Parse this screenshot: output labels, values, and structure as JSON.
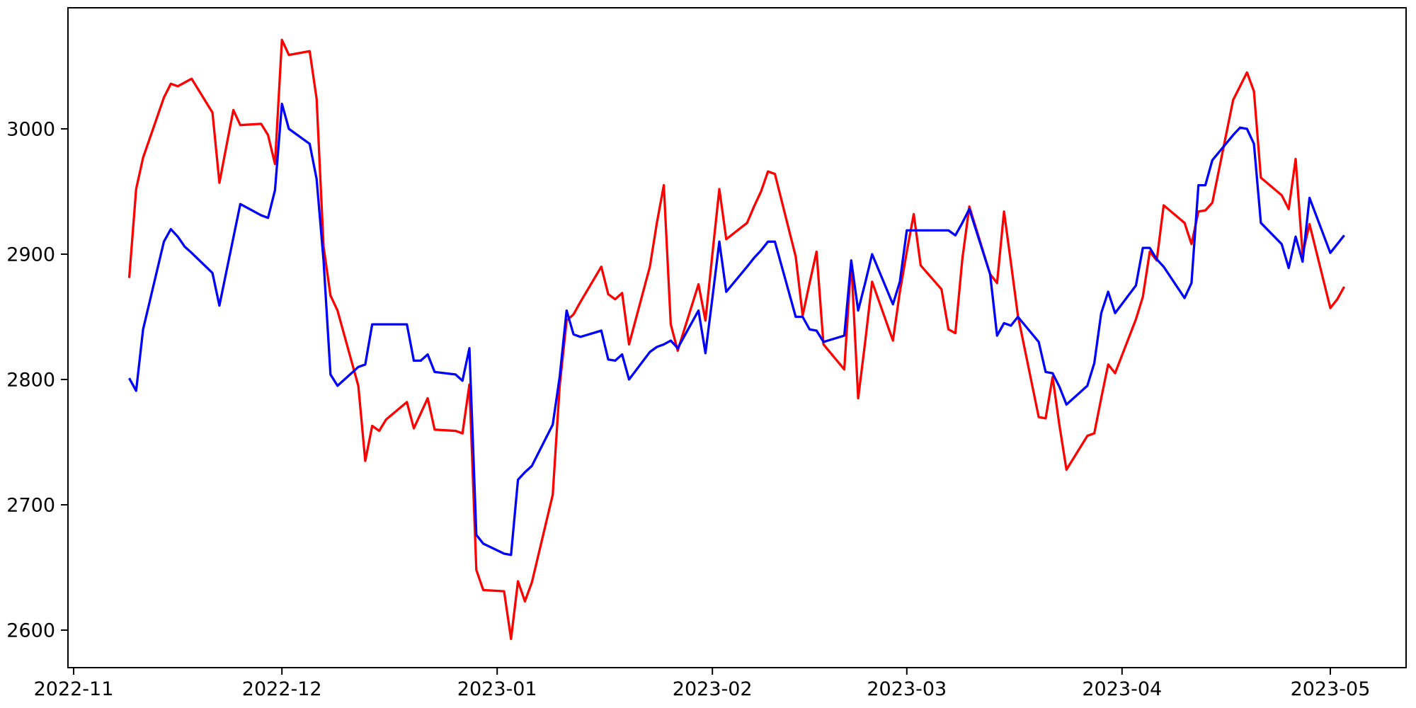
{
  "figure": {
    "background": "#ffffff",
    "plot_background": "#ffffff",
    "spine_color": "#000000"
  },
  "chart_data": {
    "type": "line",
    "title": "",
    "xlabel": "",
    "ylabel": "",
    "grid": false,
    "legend": "none",
    "x_axis": {
      "kind": "date",
      "range_start": "2022-10-31",
      "range_end": "2023-05-12",
      "ticks": [
        {
          "date": "2022-11-01",
          "label": "2022-11"
        },
        {
          "date": "2022-12-01",
          "label": "2022-12"
        },
        {
          "date": "2023-01-01",
          "label": "2023-01"
        },
        {
          "date": "2023-02-01",
          "label": "2023-02"
        },
        {
          "date": "2023-03-01",
          "label": "2023-03"
        },
        {
          "date": "2023-04-01",
          "label": "2023-04"
        },
        {
          "date": "2023-05-01",
          "label": "2023-05"
        }
      ]
    },
    "y_axis": {
      "range": [
        2570,
        3097
      ],
      "ticks": [
        {
          "value": 2600,
          "label": "2600"
        },
        {
          "value": 2700,
          "label": "2700"
        },
        {
          "value": 2800,
          "label": "2800"
        },
        {
          "value": 2900,
          "label": "2900"
        },
        {
          "value": 3000,
          "label": "3000"
        }
      ]
    },
    "series": [
      {
        "name": "red",
        "color": "#ff0000",
        "points": [
          [
            "2022-11-09",
            2881
          ],
          [
            "2022-11-10",
            2952
          ],
          [
            "2022-11-11",
            2977
          ],
          [
            "2022-11-14",
            3025
          ],
          [
            "2022-11-15",
            3036
          ],
          [
            "2022-11-16",
            3034
          ],
          [
            "2022-11-17",
            3037
          ],
          [
            "2022-11-18",
            3040
          ],
          [
            "2022-11-21",
            3013
          ],
          [
            "2022-11-22",
            2957
          ],
          [
            "2022-11-23",
            2986
          ],
          [
            "2022-11-24",
            3015
          ],
          [
            "2022-11-25",
            3003
          ],
          [
            "2022-11-28",
            3004
          ],
          [
            "2022-11-29",
            2995
          ],
          [
            "2022-11-30",
            2972
          ],
          [
            "2022-12-01",
            3071
          ],
          [
            "2022-12-02",
            3059
          ],
          [
            "2022-12-05",
            3062
          ],
          [
            "2022-12-06",
            3024
          ],
          [
            "2022-12-07",
            2906
          ],
          [
            "2022-12-08",
            2867
          ],
          [
            "2022-12-09",
            2855
          ],
          [
            "2022-12-12",
            2795
          ],
          [
            "2022-12-13",
            2735
          ],
          [
            "2022-12-14",
            2763
          ],
          [
            "2022-12-15",
            2759
          ],
          [
            "2022-12-16",
            2768
          ],
          [
            "2022-12-19",
            2782
          ],
          [
            "2022-12-20",
            2761
          ],
          [
            "2022-12-21",
            2773
          ],
          [
            "2022-12-22",
            2785
          ],
          [
            "2022-12-23",
            2760
          ],
          [
            "2022-12-26",
            2759
          ],
          [
            "2022-12-27",
            2757
          ],
          [
            "2022-12-28",
            2796
          ],
          [
            "2022-12-29",
            2648
          ],
          [
            "2022-12-30",
            2632
          ],
          [
            "2023-01-02",
            2631
          ],
          [
            "2023-01-03",
            2593
          ],
          [
            "2023-01-04",
            2639
          ],
          [
            "2023-01-05",
            2623
          ],
          [
            "2023-01-06",
            2638
          ],
          [
            "2023-01-09",
            2708
          ],
          [
            "2023-01-10",
            2795
          ],
          [
            "2023-01-11",
            2847
          ],
          [
            "2023-01-12",
            2852
          ],
          [
            "2023-01-13",
            2862
          ],
          [
            "2023-01-16",
            2890
          ],
          [
            "2023-01-17",
            2868
          ],
          [
            "2023-01-18",
            2864
          ],
          [
            "2023-01-19",
            2869
          ],
          [
            "2023-01-20",
            2828
          ],
          [
            "2023-01-23",
            2890
          ],
          [
            "2023-01-24",
            2925
          ],
          [
            "2023-01-25",
            2955
          ],
          [
            "2023-01-26",
            2844
          ],
          [
            "2023-01-27",
            2823
          ],
          [
            "2023-01-30",
            2876
          ],
          [
            "2023-01-31",
            2847
          ],
          [
            "2023-02-01",
            2900
          ],
          [
            "2023-02-02",
            2952
          ],
          [
            "2023-02-03",
            2912
          ],
          [
            "2023-02-06",
            2925
          ],
          [
            "2023-02-07",
            2938
          ],
          [
            "2023-02-08",
            2950
          ],
          [
            "2023-02-09",
            2966
          ],
          [
            "2023-02-10",
            2964
          ],
          [
            "2023-02-13",
            2898
          ],
          [
            "2023-02-14",
            2851
          ],
          [
            "2023-02-15",
            2877
          ],
          [
            "2023-02-16",
            2902
          ],
          [
            "2023-02-17",
            2828
          ],
          [
            "2023-02-20",
            2808
          ],
          [
            "2023-02-21",
            2895
          ],
          [
            "2023-02-22",
            2785
          ],
          [
            "2023-02-23",
            2830
          ],
          [
            "2023-02-24",
            2878
          ],
          [
            "2023-02-27",
            2831
          ],
          [
            "2023-02-28",
            2870
          ],
          [
            "2023-03-01",
            2902
          ],
          [
            "2023-03-02",
            2932
          ],
          [
            "2023-03-03",
            2891
          ],
          [
            "2023-03-06",
            2872
          ],
          [
            "2023-03-07",
            2840
          ],
          [
            "2023-03-08",
            2837
          ],
          [
            "2023-03-09",
            2896
          ],
          [
            "2023-03-10",
            2938
          ],
          [
            "2023-03-13",
            2884
          ],
          [
            "2023-03-14",
            2877
          ],
          [
            "2023-03-15",
            2934
          ],
          [
            "2023-03-16",
            2893
          ],
          [
            "2023-03-17",
            2851
          ],
          [
            "2023-03-20",
            2770
          ],
          [
            "2023-03-21",
            2769
          ],
          [
            "2023-03-22",
            2802
          ],
          [
            "2023-03-23",
            2763
          ],
          [
            "2023-03-24",
            2728
          ],
          [
            "2023-03-27",
            2755
          ],
          [
            "2023-03-28",
            2757
          ],
          [
            "2023-03-29",
            2785
          ],
          [
            "2023-03-30",
            2812
          ],
          [
            "2023-03-31",
            2805
          ],
          [
            "2023-04-03",
            2848
          ],
          [
            "2023-04-04",
            2866
          ],
          [
            "2023-04-05",
            2902
          ],
          [
            "2023-04-06",
            2895
          ],
          [
            "2023-04-07",
            2939
          ],
          [
            "2023-04-10",
            2925
          ],
          [
            "2023-04-11",
            2908
          ],
          [
            "2023-04-12",
            2934
          ],
          [
            "2023-04-13",
            2935
          ],
          [
            "2023-04-14",
            2941
          ],
          [
            "2023-04-17",
            3023
          ],
          [
            "2023-04-18",
            3034
          ],
          [
            "2023-04-19",
            3045
          ],
          [
            "2023-04-20",
            3030
          ],
          [
            "2023-04-21",
            2961
          ],
          [
            "2023-04-24",
            2947
          ],
          [
            "2023-04-25",
            2936
          ],
          [
            "2023-04-26",
            2976
          ],
          [
            "2023-04-27",
            2900
          ],
          [
            "2023-04-28",
            2924
          ],
          [
            "2023-05-01",
            2857
          ],
          [
            "2023-05-02",
            2864
          ],
          [
            "2023-05-03",
            2874
          ]
        ]
      },
      {
        "name": "blue",
        "color": "#0000ff",
        "points": [
          [
            "2022-11-09",
            2801
          ],
          [
            "2022-11-10",
            2791
          ],
          [
            "2022-11-11",
            2840
          ],
          [
            "2022-11-14",
            2910
          ],
          [
            "2022-11-15",
            2920
          ],
          [
            "2022-11-16",
            2914
          ],
          [
            "2022-11-17",
            2906
          ],
          [
            "2022-11-18",
            2901
          ],
          [
            "2022-11-21",
            2885
          ],
          [
            "2022-11-22",
            2859
          ],
          [
            "2022-11-23",
            2886
          ],
          [
            "2022-11-25",
            2940
          ],
          [
            "2022-11-28",
            2931
          ],
          [
            "2022-11-29",
            2929
          ],
          [
            "2022-11-30",
            2951
          ],
          [
            "2022-12-01",
            3020
          ],
          [
            "2022-12-02",
            3000
          ],
          [
            "2022-12-05",
            2988
          ],
          [
            "2022-12-06",
            2960
          ],
          [
            "2022-12-07",
            2895
          ],
          [
            "2022-12-08",
            2804
          ],
          [
            "2022-12-09",
            2795
          ],
          [
            "2022-12-12",
            2810
          ],
          [
            "2022-12-13",
            2812
          ],
          [
            "2022-12-14",
            2844
          ],
          [
            "2022-12-15",
            2844
          ],
          [
            "2022-12-16",
            2844
          ],
          [
            "2022-12-19",
            2844
          ],
          [
            "2022-12-20",
            2815
          ],
          [
            "2022-12-21",
            2815
          ],
          [
            "2022-12-22",
            2820
          ],
          [
            "2022-12-23",
            2806
          ],
          [
            "2022-12-26",
            2804
          ],
          [
            "2022-12-27",
            2799
          ],
          [
            "2022-12-28",
            2825
          ],
          [
            "2022-12-29",
            2676
          ],
          [
            "2022-12-30",
            2669
          ],
          [
            "2023-01-02",
            2661
          ],
          [
            "2023-01-03",
            2660
          ],
          [
            "2023-01-04",
            2720
          ],
          [
            "2023-01-05",
            2726
          ],
          [
            "2023-01-06",
            2731
          ],
          [
            "2023-01-09",
            2764
          ],
          [
            "2023-01-10",
            2802
          ],
          [
            "2023-01-11",
            2855
          ],
          [
            "2023-01-12",
            2836
          ],
          [
            "2023-01-13",
            2834
          ],
          [
            "2023-01-16",
            2839
          ],
          [
            "2023-01-17",
            2816
          ],
          [
            "2023-01-18",
            2815
          ],
          [
            "2023-01-19",
            2820
          ],
          [
            "2023-01-20",
            2800
          ],
          [
            "2023-01-23",
            2822
          ],
          [
            "2023-01-24",
            2826
          ],
          [
            "2023-01-25",
            2828
          ],
          [
            "2023-01-26",
            2831
          ],
          [
            "2023-01-27",
            2825
          ],
          [
            "2023-01-30",
            2855
          ],
          [
            "2023-01-31",
            2821
          ],
          [
            "2023-02-01",
            2865
          ],
          [
            "2023-02-02",
            2910
          ],
          [
            "2023-02-03",
            2870
          ],
          [
            "2023-02-06",
            2890
          ],
          [
            "2023-02-07",
            2897
          ],
          [
            "2023-02-08",
            2903
          ],
          [
            "2023-02-09",
            2910
          ],
          [
            "2023-02-10",
            2910
          ],
          [
            "2023-02-13",
            2850
          ],
          [
            "2023-02-14",
            2850
          ],
          [
            "2023-02-15",
            2840
          ],
          [
            "2023-02-16",
            2839
          ],
          [
            "2023-02-17",
            2830
          ],
          [
            "2023-02-20",
            2835
          ],
          [
            "2023-02-21",
            2895
          ],
          [
            "2023-02-22",
            2855
          ],
          [
            "2023-02-23",
            2877
          ],
          [
            "2023-02-24",
            2900
          ],
          [
            "2023-02-27",
            2860
          ],
          [
            "2023-02-28",
            2878
          ],
          [
            "2023-03-01",
            2919
          ],
          [
            "2023-03-02",
            2919
          ],
          [
            "2023-03-03",
            2919
          ],
          [
            "2023-03-06",
            2919
          ],
          [
            "2023-03-07",
            2919
          ],
          [
            "2023-03-08",
            2915
          ],
          [
            "2023-03-09",
            2925
          ],
          [
            "2023-03-10",
            2936
          ],
          [
            "2023-03-13",
            2884
          ],
          [
            "2023-03-14",
            2835
          ],
          [
            "2023-03-15",
            2845
          ],
          [
            "2023-03-16",
            2843
          ],
          [
            "2023-03-17",
            2850
          ],
          [
            "2023-03-20",
            2830
          ],
          [
            "2023-03-21",
            2806
          ],
          [
            "2023-03-22",
            2805
          ],
          [
            "2023-03-23",
            2794
          ],
          [
            "2023-03-24",
            2780
          ],
          [
            "2023-03-27",
            2795
          ],
          [
            "2023-03-28",
            2813
          ],
          [
            "2023-03-29",
            2853
          ],
          [
            "2023-03-30",
            2870
          ],
          [
            "2023-03-31",
            2853
          ],
          [
            "2023-04-03",
            2875
          ],
          [
            "2023-04-04",
            2905
          ],
          [
            "2023-04-05",
            2905
          ],
          [
            "2023-04-06",
            2896
          ],
          [
            "2023-04-07",
            2890
          ],
          [
            "2023-04-10",
            2865
          ],
          [
            "2023-04-11",
            2877
          ],
          [
            "2023-04-12",
            2955
          ],
          [
            "2023-04-13",
            2955
          ],
          [
            "2023-04-14",
            2975
          ],
          [
            "2023-04-17",
            2995
          ],
          [
            "2023-04-18",
            3001
          ],
          [
            "2023-04-19",
            3000
          ],
          [
            "2023-04-20",
            2988
          ],
          [
            "2023-04-21",
            2925
          ],
          [
            "2023-04-24",
            2908
          ],
          [
            "2023-04-25",
            2889
          ],
          [
            "2023-04-26",
            2914
          ],
          [
            "2023-04-27",
            2894
          ],
          [
            "2023-04-28",
            2945
          ],
          [
            "2023-05-01",
            2901
          ],
          [
            "2023-05-02",
            2908
          ],
          [
            "2023-05-03",
            2915
          ]
        ]
      }
    ]
  }
}
